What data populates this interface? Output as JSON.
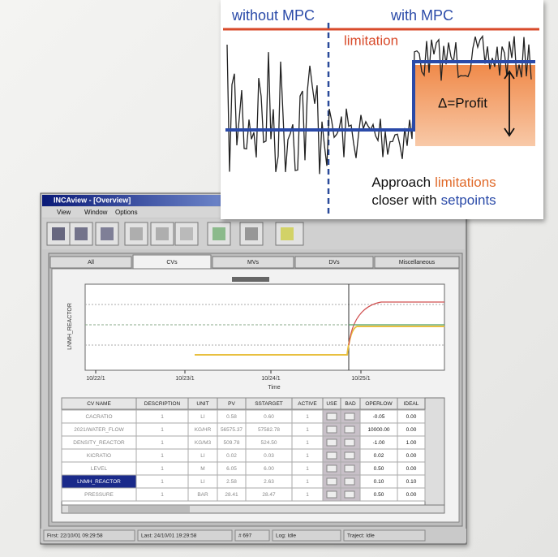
{
  "overlay": {
    "left_label": "without MPC",
    "right_label": "with MPC",
    "limitation": "limitation",
    "profit": "Δ=Profit",
    "caption": [
      "Approach",
      "limitations",
      "closer with",
      "setpoints"
    ]
  },
  "window": {
    "title": "INCAview - [Overview]",
    "menu": [
      "View",
      "Window",
      "Options"
    ],
    "tabs": [
      "All",
      "CVs",
      "MVs",
      "DVs",
      "Miscellaneous"
    ],
    "trend": {
      "y_label": "LNMH_REACTOR",
      "x_ticks": [
        "10/22/1",
        "10/23/1",
        "10/24/1",
        "10/25/1"
      ],
      "x_label": "Time"
    },
    "table": {
      "columns": [
        "CV NAME",
        "DESCRIPTION",
        "UNIT",
        "PV",
        "SSTARGET",
        "ACTIVE",
        "USE",
        "BAD",
        "OPERLOW",
        "IDEAL"
      ],
      "rows": [
        [
          "CACRATIO",
          "1",
          "LI",
          "0.58",
          "0.60",
          "1",
          "-0.05",
          "0.00"
        ],
        [
          "2021/WATER_FLOW",
          "1",
          "KG/HR",
          "56575.37",
          "57582.78",
          "1",
          "10000.00",
          "0.00"
        ],
        [
          "DENSITY_REACTOR",
          "1",
          "KG/M3",
          "509.78",
          "524.50",
          "1",
          "-1.00",
          "1.00"
        ],
        [
          "KICRATIO",
          "1",
          "LI",
          "0.02",
          "0.03",
          "1",
          "0.02",
          "0.00"
        ],
        [
          "LEVEL",
          "1",
          "M",
          "6.05",
          "6.00",
          "1",
          "0.50",
          "0.00"
        ],
        [
          "LNMH_REACTOR",
          "1",
          "LI",
          "2.58",
          "2.63",
          "1",
          "0.10",
          "0.10"
        ],
        [
          "PRESSURE",
          "1",
          "BAR",
          "28.41",
          "28.47",
          "1",
          "0.50",
          "0.00"
        ]
      ]
    },
    "status": [
      "First: 22/10/01 09:29:58",
      "Last: 24/10/01 19:29:58",
      "# 697",
      "Log: Idle",
      "Traject: Idle"
    ]
  }
}
